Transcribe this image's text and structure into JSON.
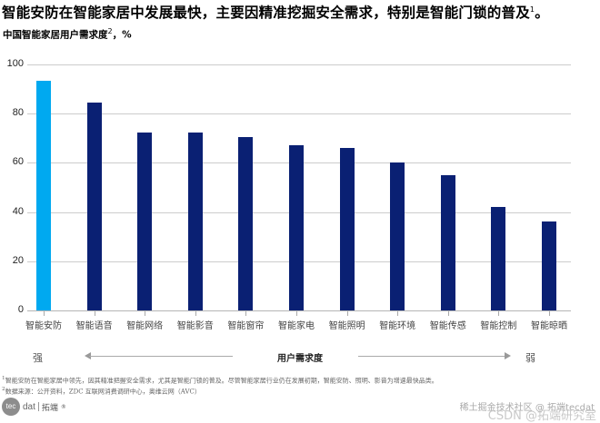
{
  "header": {
    "title": "智能安防在智能家居中发展最快，主要因精准挖掘安全需求，特别是智能门锁的普及",
    "title_sup": "1",
    "title_end": "。",
    "subtitle": "中国智能家居用户需求度",
    "subtitle_sup": "2",
    "subtitle_unit": "，%"
  },
  "axis": {
    "left_label": "强",
    "right_label": "弱",
    "center_label": "用户需求度"
  },
  "colors": {
    "highlight": "#00a9f0",
    "bar": "#0a2073",
    "grid": "#cccccc"
  },
  "chart_data": {
    "type": "bar",
    "title": "中国智能家居用户需求度，%",
    "xlabel": "用户需求度（强 → 弱）",
    "ylabel": "%",
    "ylim": [
      0,
      100
    ],
    "yticks": [
      0,
      20,
      40,
      60,
      80,
      100
    ],
    "grid": true,
    "legend": null,
    "categories": [
      "智能安防",
      "智能语音",
      "智能网络",
      "智能影音",
      "智能窗帘",
      "智能家电",
      "智能照明",
      "智能环境",
      "智能传感",
      "智能控制",
      "智能晾晒"
    ],
    "values": [
      93.5,
      84.5,
      72.5,
      72.5,
      70.5,
      67,
      66,
      60,
      55,
      42,
      36
    ],
    "highlight_index": 0
  },
  "footnotes": [
    {
      "sup": "1",
      "text": "智能安防在智能家居中领先，因其精准把握安全需求，尤其是智能门锁的普及。尽管智能家居行业仍在发展初期，智能安防、照明、影音为增速最快品类。"
    },
    {
      "sup": "2",
      "text": "数据来源：公开资料，ZDC 互联网消费调研中心，奥维云网（AVC）"
    }
  ],
  "logo": {
    "mark": "tec",
    "text": "dat",
    "cn": "拓端",
    "reg": "®"
  },
  "watermark": {
    "line1": "稀土掘金技术社区 @ 拓端tecdat",
    "line2": "CSDN @拓端研究室"
  }
}
